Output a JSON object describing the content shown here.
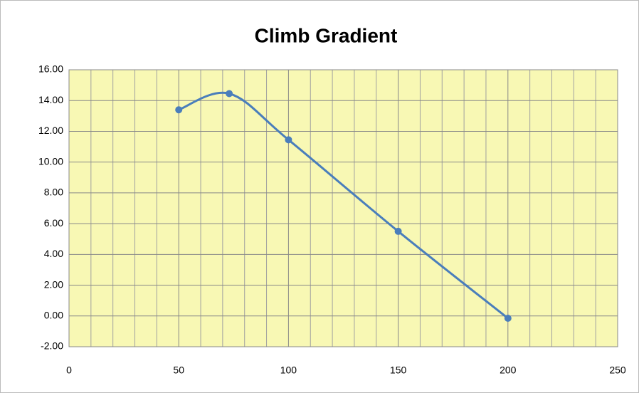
{
  "chart_data": {
    "type": "scatter",
    "title": "Climb Gradient",
    "smooth": true,
    "grid": true,
    "plot_background": "#f8f8b4",
    "series": [
      {
        "color": "#4a7ebb",
        "x": [
          50,
          73,
          100,
          150,
          200
        ],
        "values": [
          13.4,
          14.45,
          11.45,
          5.5,
          -0.15
        ]
      }
    ],
    "xlim": [
      0,
      250
    ],
    "xticks": [
      0,
      50,
      100,
      150,
      200,
      250
    ],
    "x_minor_grid": [
      10,
      20,
      30,
      40,
      60,
      70,
      80,
      90,
      110,
      120,
      130,
      140,
      160,
      170,
      180,
      190,
      210,
      220,
      230,
      240
    ],
    "ylim": [
      -2,
      16
    ],
    "yticks": [
      {
        "value": -2,
        "label": "-2.00"
      },
      {
        "value": 0,
        "label": "0.00"
      },
      {
        "value": 2,
        "label": "2.00"
      },
      {
        "value": 4,
        "label": "4.00"
      },
      {
        "value": 6,
        "label": "6.00"
      },
      {
        "value": 8,
        "label": "8.00"
      },
      {
        "value": 10,
        "label": "10.00"
      },
      {
        "value": 12,
        "label": "12.00"
      },
      {
        "value": 14,
        "label": "14.00"
      },
      {
        "value": 16,
        "label": "16.00"
      }
    ]
  }
}
